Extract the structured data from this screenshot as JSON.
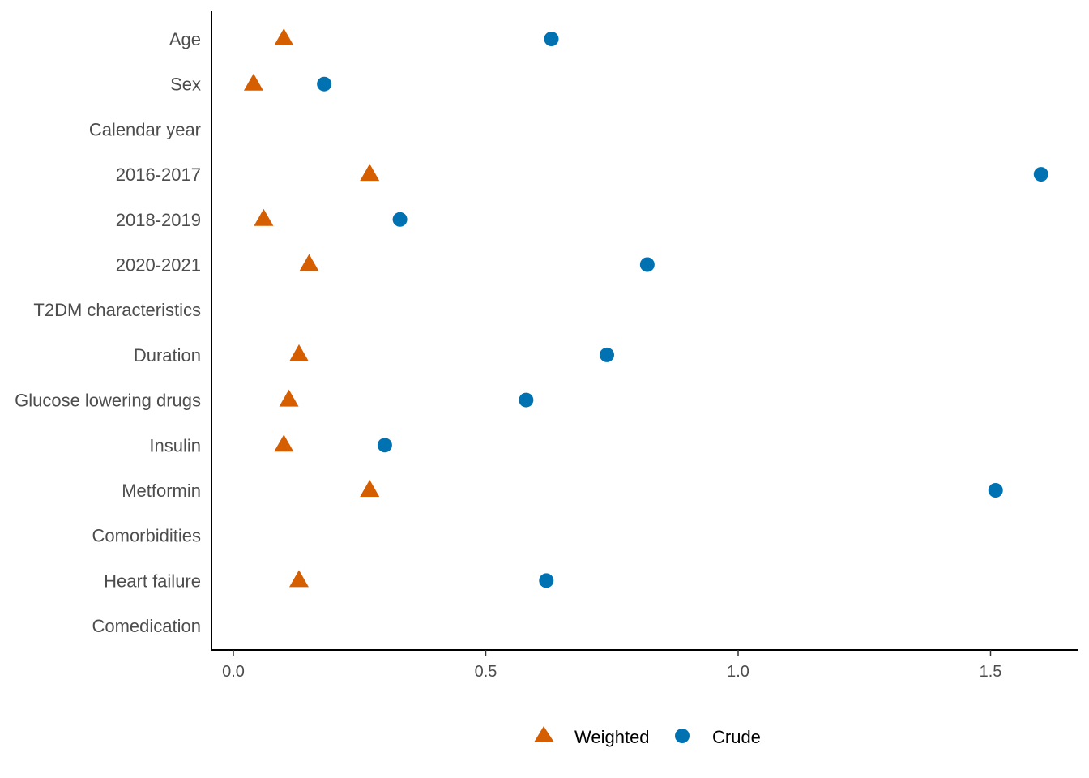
{
  "chart_data": {
    "type": "scatter",
    "title": "",
    "xlabel": "",
    "ylabel": "",
    "xlim": [
      -0.04,
      1.67
    ],
    "x_ticks": [
      0.0,
      0.5,
      1.0,
      1.5
    ],
    "x_tick_labels": [
      "0.0",
      "0.5",
      "1.0",
      "1.5"
    ],
    "grid": false,
    "legend_position": "bottom",
    "categories": [
      "Age",
      "Sex",
      "Calendar year",
      "2016-2017",
      "2018-2019",
      "2020-2021",
      "T2DM characteristics",
      "Duration",
      "Glucose lowering drugs",
      "Insulin",
      "Metformin",
      "Comorbidities",
      "Heart failure",
      "Comedication"
    ],
    "series": [
      {
        "name": "Weighted",
        "marker": "triangle",
        "color": "#D55E00",
        "values": [
          0.1,
          0.04,
          null,
          0.27,
          0.06,
          0.15,
          null,
          0.13,
          0.11,
          0.1,
          0.27,
          null,
          0.13,
          null
        ]
      },
      {
        "name": "Crude",
        "marker": "circle",
        "color": "#0072B2",
        "values": [
          0.63,
          0.18,
          null,
          1.6,
          0.33,
          0.82,
          null,
          0.74,
          0.58,
          0.3,
          1.51,
          null,
          0.62,
          null
        ]
      }
    ]
  }
}
